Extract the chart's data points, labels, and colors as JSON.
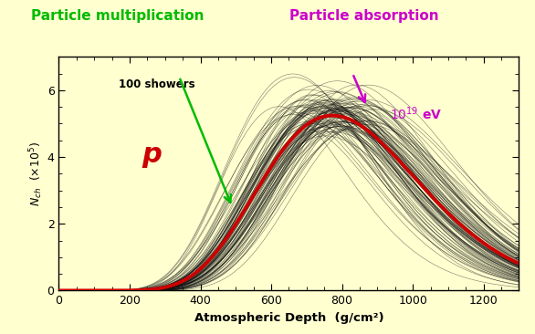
{
  "background_color": "#FFFFD0",
  "plot_bg_color": "#FFFFD0",
  "x_min": 0,
  "x_max": 1300,
  "y_min": 0,
  "y_max": 7,
  "x_ticks": [
    0,
    200,
    400,
    600,
    800,
    1000,
    1200
  ],
  "y_ticks": [
    0,
    2,
    4,
    6
  ],
  "xlabel": "Atmospheric Depth  (g/cm²)",
  "ylabel": "N_{ch}  (x10^{5})",
  "n_showers": 100,
  "peak_mean": 780,
  "peak_spread": 60,
  "peak_height_mean": 5.4,
  "peak_height_spread": 0.4,
  "label_showers": "100 showers",
  "label_particle": "p",
  "label_multiplication": "Particle multiplication",
  "label_absorption": "Particle absorption",
  "mean_color": "#CC0000",
  "shower_color": "#111111",
  "particle_label_color": "#CC0000",
  "multiplication_color": "#00BB00",
  "absorption_color": "#CC00CC",
  "mean_linewidth": 2.8,
  "shower_linewidth": 0.4,
  "shower_alpha": 0.55,
  "lam_mean": 65,
  "lam_std": 6
}
